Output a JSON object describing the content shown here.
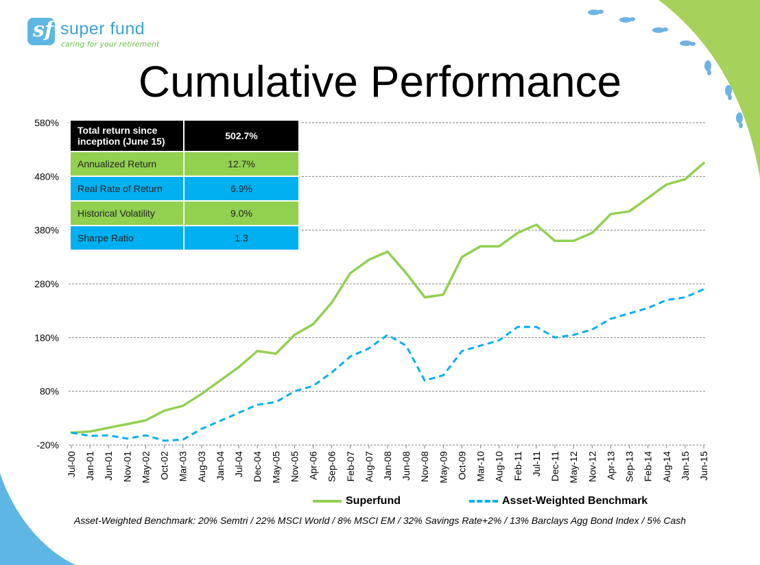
{
  "brand": {
    "logo_glyph": "sf",
    "name": "super fund",
    "tagline": "caring for your retirement",
    "colors": {
      "blue": "#3aa2d9",
      "green": "#6cc04a",
      "corner_green": "#a6d15a",
      "corner_blue": "#5eb6e4"
    }
  },
  "title": "Cumulative Performance",
  "stats_table": {
    "rows": [
      {
        "label": "Total return since inception (June 15)",
        "value": "502.7%",
        "style": "head"
      },
      {
        "label": "Annualized Return",
        "value": "12.7%",
        "style": "green"
      },
      {
        "label": "Real Rate of Return",
        "value": "6.9%",
        "style": "blue"
      },
      {
        "label": "Historical Volatility",
        "value": "9.0%",
        "style": "green"
      },
      {
        "label": "Sharpe Ratio",
        "value": "1.3",
        "style": "blue"
      }
    ]
  },
  "footnote": "Asset-Weighted Benchmark: 20% Semtri / 22% MSCI World / 8% MSCI EM / 32% Savings Rate+2% / 13% Barclays Agg Bond Index / 5% Cash",
  "chart_data": {
    "type": "line",
    "x_tick_labels": [
      "Jul-00",
      "Jan-01",
      "Jun-01",
      "Nov-01",
      "May-02",
      "Oct-02",
      "Mar-03",
      "Aug-03",
      "Jan-04",
      "Jul-04",
      "Dec-04",
      "May-05",
      "Nov-05",
      "Apr-06",
      "Sep-06",
      "Feb-07",
      "Aug-07",
      "Jan-08",
      "Jun-08",
      "Nov-08",
      "May-09",
      "Oct-09",
      "Mar-10",
      "Aug-10",
      "Feb-11",
      "Jul-11",
      "Dec-11",
      "May-12",
      "Nov-12",
      "Apr-13",
      "Sep-13",
      "Feb-14",
      "Aug-14",
      "Jan-15",
      "Jun-15"
    ],
    "y_ticks": [
      -20,
      80,
      180,
      280,
      380,
      480,
      580
    ],
    "y_tick_labels": [
      "-20%",
      "80%",
      "180%",
      "280%",
      "380%",
      "480%",
      "580%"
    ],
    "ylim": [
      -20,
      580
    ],
    "grid": "horizontal dashed",
    "legend_position": "bottom",
    "series": [
      {
        "name": "Superfund",
        "color": "#92d050",
        "style": "solid",
        "points": [
          [
            "Jul-00",
            3
          ],
          [
            "Jan-01",
            5
          ],
          [
            "Jun-01",
            12
          ],
          [
            "Nov-01",
            19
          ],
          [
            "May-02",
            26
          ],
          [
            "Oct-02",
            44
          ],
          [
            "Mar-03",
            53
          ],
          [
            "Aug-03",
            75
          ],
          [
            "Jan-04",
            100
          ],
          [
            "Jul-04",
            125
          ],
          [
            "Dec-04",
            155
          ],
          [
            "May-05",
            150
          ],
          [
            "Nov-05",
            185
          ],
          [
            "Apr-06",
            205
          ],
          [
            "Sep-06",
            245
          ],
          [
            "Feb-07",
            300
          ],
          [
            "Aug-07",
            325
          ],
          [
            "Jan-08",
            340
          ],
          [
            "Jun-08",
            300
          ],
          [
            "Nov-08",
            255
          ],
          [
            "May-09",
            260
          ],
          [
            "Oct-09",
            330
          ],
          [
            "Mar-10",
            350
          ],
          [
            "Aug-10",
            350
          ],
          [
            "Feb-11",
            375
          ],
          [
            "Jul-11",
            390
          ],
          [
            "Dec-11",
            360
          ],
          [
            "May-12",
            360
          ],
          [
            "Nov-12",
            375
          ],
          [
            "Apr-13",
            410
          ],
          [
            "Sep-13",
            415
          ],
          [
            "Feb-14",
            440
          ],
          [
            "Aug-14",
            465
          ],
          [
            "Jan-15",
            475
          ],
          [
            "Jun-15",
            505
          ]
        ]
      },
      {
        "name": "Asset-Weighted Benchmark",
        "color": "#00b0f0",
        "style": "dashed",
        "points": [
          [
            "Jul-00",
            3
          ],
          [
            "Jan-01",
            -3
          ],
          [
            "Jun-01",
            -2
          ],
          [
            "Nov-01",
            -8
          ],
          [
            "May-02",
            -2
          ],
          [
            "Oct-02",
            -12
          ],
          [
            "Mar-03",
            -10
          ],
          [
            "Aug-03",
            10
          ],
          [
            "Jan-04",
            25
          ],
          [
            "Jul-04",
            40
          ],
          [
            "Dec-04",
            55
          ],
          [
            "May-05",
            60
          ],
          [
            "Nov-05",
            80
          ],
          [
            "Apr-06",
            90
          ],
          [
            "Sep-06",
            115
          ],
          [
            "Feb-07",
            145
          ],
          [
            "Aug-07",
            160
          ],
          [
            "Jan-08",
            185
          ],
          [
            "Jun-08",
            165
          ],
          [
            "Nov-08",
            100
          ],
          [
            "May-09",
            110
          ],
          [
            "Oct-09",
            155
          ],
          [
            "Mar-10",
            165
          ],
          [
            "Aug-10",
            175
          ],
          [
            "Feb-11",
            200
          ],
          [
            "Jul-11",
            200
          ],
          [
            "Dec-11",
            180
          ],
          [
            "May-12",
            185
          ],
          [
            "Nov-12",
            195
          ],
          [
            "Apr-13",
            215
          ],
          [
            "Sep-13",
            225
          ],
          [
            "Feb-14",
            235
          ],
          [
            "Aug-14",
            250
          ],
          [
            "Jan-15",
            255
          ],
          [
            "Jun-15",
            270
          ]
        ]
      }
    ]
  }
}
